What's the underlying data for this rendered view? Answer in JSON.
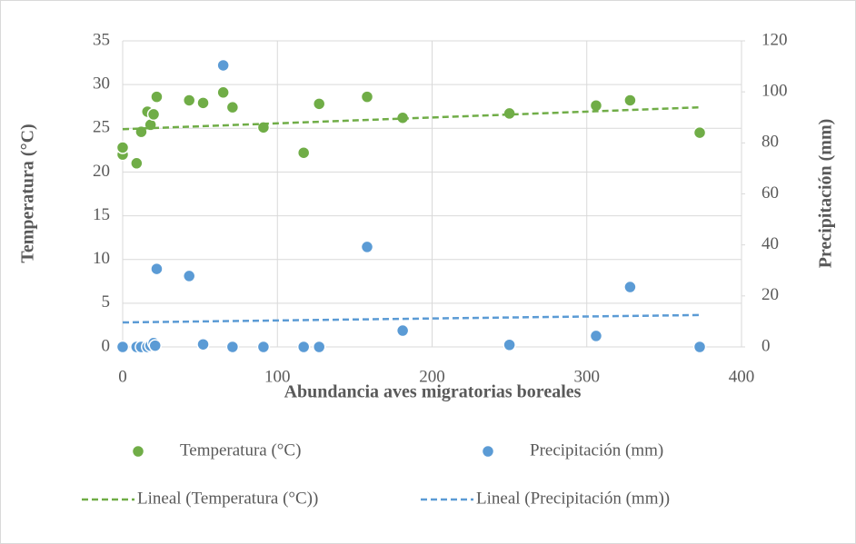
{
  "chart_data": {
    "type": "scatter",
    "x_label": "Abundancia aves migratorias boreales",
    "y_label": "Temperatura (°C)",
    "y2_label": "Precipitación (mm)",
    "xlim": [
      0,
      400
    ],
    "xticks": [
      0,
      100,
      200,
      300,
      400
    ],
    "ylim": [
      0,
      35
    ],
    "yticks": [
      0,
      5,
      10,
      15,
      20,
      25,
      30,
      35
    ],
    "y2lim": [
      0,
      120
    ],
    "y2ticks": [
      0,
      20,
      40,
      60,
      80,
      100,
      120
    ],
    "grid": true,
    "legend": "bottom",
    "series": [
      {
        "name": "Temperatura (°C)",
        "color": "#70ad47",
        "marker": "circle",
        "x": [
          0,
          0,
          9,
          12,
          16,
          18,
          20,
          22,
          43,
          52,
          65,
          71,
          91,
          117,
          127,
          158,
          181,
          250,
          306,
          328,
          373
        ],
        "values": [
          22.0,
          22.8,
          21.0,
          24.6,
          26.9,
          25.4,
          26.6,
          28.6,
          28.2,
          27.9,
          29.1,
          27.4,
          25.1,
          22.2,
          27.8,
          28.6,
          26.2,
          26.7,
          27.6,
          28.2,
          24.5
        ]
      },
      {
        "name": "Precipitación (mm)",
        "color": "#5b9bd5",
        "marker": "circle",
        "axis": "y2",
        "x": [
          0,
          9,
          12,
          16,
          18,
          20,
          21,
          22,
          43,
          52,
          65,
          71,
          91,
          117,
          127,
          158,
          181,
          250,
          306,
          328,
          373
        ],
        "values": [
          0,
          0,
          0,
          0,
          0.5,
          1.5,
          0.5,
          30.6,
          27.8,
          1,
          110.4,
          0,
          0,
          0,
          0,
          39.2,
          6.4,
          0.8,
          4.3,
          23.5,
          0
        ]
      },
      {
        "name": "Lineal (Temperatura (°C))",
        "color": "#70ad47",
        "line_style": "dashed",
        "x": [
          0,
          373
        ],
        "values": [
          24.9,
          27.4
        ]
      },
      {
        "name": "Lineal (Precipitación (mm))",
        "color": "#5b9bd5",
        "line_style": "dashed",
        "axis": "y2",
        "x": [
          0,
          373
        ],
        "values": [
          9.6,
          12.5
        ]
      }
    ]
  }
}
